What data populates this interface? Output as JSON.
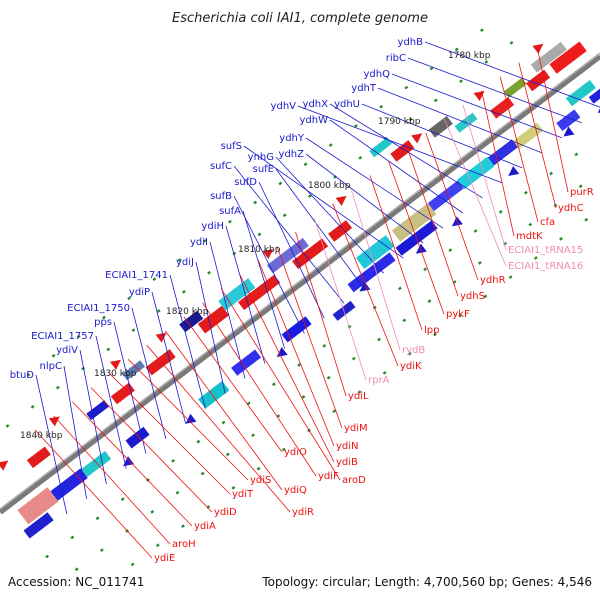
{
  "title": "Escherichia coli IAI1, complete genome",
  "footer": {
    "accession": "Accession: NC_011741",
    "summary": "Topology: circular; Length: 4,700,560 bp; Genes: 4,546"
  },
  "colors": {
    "forward_label": "#1a1acc",
    "reverse_label": "#ee1111",
    "rna_label": "#f08cb8",
    "backbone": "#7a7a7a",
    "tick": "#2a8a2a"
  },
  "kbp_labels": [
    {
      "id": "1780",
      "text": "1780 kbp"
    },
    {
      "id": "1790",
      "text": "1790 kbp"
    },
    {
      "id": "1800",
      "text": "1800 kbp"
    },
    {
      "id": "1810",
      "text": "1810 kbp"
    },
    {
      "id": "1820",
      "text": "1820 kbp"
    },
    {
      "id": "1830",
      "text": "1830 kbp"
    },
    {
      "id": "1840",
      "text": "1840 kbp"
    }
  ],
  "forward_labels": [
    {
      "id": "ydhB",
      "text": "ydhB"
    },
    {
      "id": "ribC",
      "text": "ribC"
    },
    {
      "id": "ydhQ",
      "text": "ydhQ"
    },
    {
      "id": "ydhT",
      "text": "ydhT"
    },
    {
      "id": "ydhU",
      "text": "ydhU"
    },
    {
      "id": "ydhV",
      "text": "ydhV"
    },
    {
      "id": "ydhX",
      "text": "ydhX"
    },
    {
      "id": "ydhW",
      "text": "ydhW"
    },
    {
      "id": "ydhY",
      "text": "ydhY"
    },
    {
      "id": "ydhZ",
      "text": "ydhZ"
    },
    {
      "id": "sufS",
      "text": "sufS"
    },
    {
      "id": "ynhG",
      "text": "ynhG"
    },
    {
      "id": "sufE",
      "text": "sufE"
    },
    {
      "id": "sufC",
      "text": "sufC"
    },
    {
      "id": "sufD",
      "text": "sufD"
    },
    {
      "id": "sufB",
      "text": "sufB"
    },
    {
      "id": "sufA",
      "text": "sufA"
    },
    {
      "id": "ydiH",
      "text": "ydiH"
    },
    {
      "id": "ydiI",
      "text": "ydiI"
    },
    {
      "id": "ydiJ",
      "text": "ydiJ"
    },
    {
      "id": "ECIAI1_1741",
      "text": "ECIAI1_1741"
    },
    {
      "id": "ydiP",
      "text": "ydiP"
    },
    {
      "id": "ECIAI1_1750",
      "text": "ECIAI1_1750"
    },
    {
      "id": "pps",
      "text": "pps"
    },
    {
      "id": "ECIAI1_1757",
      "text": "ECIAI1_1757"
    },
    {
      "id": "ydiV",
      "text": "ydiV"
    },
    {
      "id": "nlpC",
      "text": "nlpC"
    },
    {
      "id": "btuD",
      "text": "btuD"
    }
  ],
  "reverse_labels": [
    {
      "id": "purR",
      "text": "purR"
    },
    {
      "id": "ydhC",
      "text": "ydhC"
    },
    {
      "id": "cfa",
      "text": "cfa"
    },
    {
      "id": "mdtK",
      "text": "mdtK"
    },
    {
      "id": "ECIAI1_tRNA15",
      "text": "ECIAI1_tRNA15"
    },
    {
      "id": "ECIAI1_tRNA16",
      "text": "ECIAI1_tRNA16"
    },
    {
      "id": "ydhR",
      "text": "ydhR"
    },
    {
      "id": "ydhS",
      "text": "ydhS"
    },
    {
      "id": "pykF",
      "text": "pykF"
    },
    {
      "id": "lpp",
      "text": "lpp"
    },
    {
      "id": "rydB",
      "text": "rydB"
    },
    {
      "id": "ydiK",
      "text": "ydiK"
    },
    {
      "id": "rprA",
      "text": "rprA"
    },
    {
      "id": "ydiL",
      "text": "ydiL"
    },
    {
      "id": "ydiM",
      "text": "ydiM"
    },
    {
      "id": "ydiN",
      "text": "ydiN"
    },
    {
      "id": "ydiB",
      "text": "ydiB"
    },
    {
      "id": "aroD",
      "text": "aroD"
    },
    {
      "id": "ydiF",
      "text": "ydiF"
    },
    {
      "id": "ydiO",
      "text": "ydiO"
    },
    {
      "id": "ydiQ",
      "text": "ydiQ"
    },
    {
      "id": "ydiR",
      "text": "ydiR"
    },
    {
      "id": "ydiS",
      "text": "ydiS"
    },
    {
      "id": "ydiT",
      "text": "ydiT"
    },
    {
      "id": "ydiD",
      "text": "ydiD"
    },
    {
      "id": "ydiA",
      "text": "ydiA"
    },
    {
      "id": "aroH",
      "text": "aroH"
    },
    {
      "id": "ydiE",
      "text": "ydiE"
    }
  ]
}
